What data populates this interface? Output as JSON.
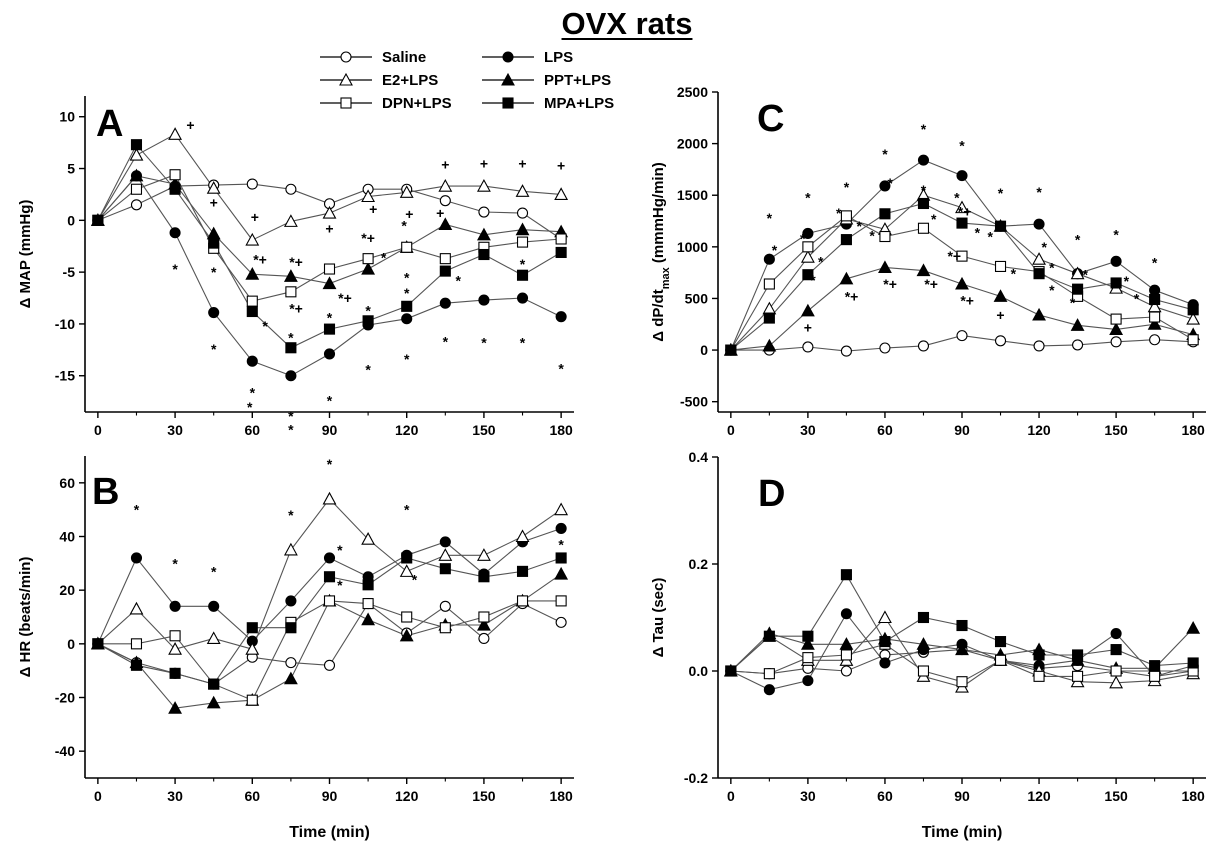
{
  "page_title": "OVX rats",
  "legend": [
    {
      "label": "Saline",
      "marker": "circle",
      "filled": false
    },
    {
      "label": "LPS",
      "marker": "circle",
      "filled": true
    },
    {
      "label": "E2+LPS",
      "marker": "triangle",
      "filled": false
    },
    {
      "label": "PPT+LPS",
      "marker": "triangle",
      "filled": true
    },
    {
      "label": "DPN+LPS",
      "marker": "square",
      "filled": false
    },
    {
      "label": "MPA+LPS",
      "marker": "square",
      "filled": true
    }
  ],
  "colors": {
    "marker_stroke": "#000000",
    "marker_fill": "#000000",
    "open_fill": "#ffffff",
    "axis": "#000000"
  },
  "chart_data": [
    {
      "panel": "A",
      "type": "line",
      "xlabel": "",
      "ylabel": "Δ MAP (mmHg)",
      "x": [
        0,
        15,
        30,
        45,
        60,
        75,
        90,
        105,
        120,
        135,
        150,
        165,
        180
      ],
      "xlim": [
        -5,
        185
      ],
      "ylim": [
        -18.5,
        12
      ],
      "xticks": [
        "0",
        "30",
        "60",
        "90",
        "120",
        "150",
        "180"
      ],
      "yticks": [
        "10",
        "5",
        "0",
        "-5",
        "-10",
        "-15"
      ],
      "ytick_values": [
        10,
        5,
        0,
        -5,
        -10,
        -15
      ],
      "series": [
        {
          "name": "Saline",
          "values": [
            0,
            1.5,
            3.3,
            3.4,
            3.5,
            3,
            1.6,
            3,
            3,
            1.9,
            0.8,
            0.7,
            -1.8
          ]
        },
        {
          "name": "LPS",
          "values": [
            0,
            4.3,
            -1.2,
            -8.9,
            -13.6,
            -15,
            -12.9,
            -10.1,
            -9.5,
            -8,
            -7.7,
            -7.5,
            -9.3
          ]
        },
        {
          "name": "E2+LPS",
          "values": [
            0,
            6.3,
            8.3,
            3.1,
            -1.9,
            -0.1,
            0.7,
            2.3,
            2.7,
            3.3,
            3.3,
            2.8,
            2.5
          ]
        },
        {
          "name": "PPT+LPS",
          "values": [
            0,
            4.3,
            3.5,
            -1.3,
            -5.2,
            -5.4,
            -6.1,
            -4.7,
            -2.6,
            -0.4,
            -1.4,
            -0.9,
            -1.1
          ]
        },
        {
          "name": "DPN+LPS",
          "values": [
            0,
            3,
            4.4,
            -2.7,
            -7.8,
            -6.9,
            -4.7,
            -3.7,
            -2.6,
            -3.7,
            -2.6,
            -2.1,
            -1.8
          ]
        },
        {
          "name": "MPA+LPS",
          "values": [
            0,
            7.3,
            3,
            -2.2,
            -8.8,
            -12.3,
            -10.5,
            -9.7,
            -8.3,
            -4.9,
            -3.3,
            -5.3,
            -3.1
          ]
        }
      ],
      "annotations": [
        {
          "text": "+",
          "x": 36,
          "y": 9.2
        },
        {
          "text": "*",
          "x": 30,
          "y": -4.7
        },
        {
          "text": "+",
          "x": 45,
          "y": 1.7
        },
        {
          "text": "*",
          "x": 45,
          "y": -5
        },
        {
          "text": "*",
          "x": 45,
          "y": -12.4
        },
        {
          "text": "+",
          "x": 61,
          "y": 0.3
        },
        {
          "text": "*+",
          "x": 63,
          "y": -3.8
        },
        {
          "text": "*",
          "x": 60,
          "y": -16.6
        },
        {
          "text": "*",
          "x": 59,
          "y": -18
        },
        {
          "text": "*",
          "x": 65,
          "y": -10.2
        },
        {
          "text": "*+",
          "x": 77,
          "y": -4
        },
        {
          "text": "*+",
          "x": 77,
          "y": -8.5
        },
        {
          "text": "*",
          "x": 75,
          "y": -11.3
        },
        {
          "text": "*",
          "x": 75,
          "y": -18.9
        },
        {
          "text": "*",
          "x": 75,
          "y": -20.2
        },
        {
          "text": "+",
          "x": 90,
          "y": -0.8
        },
        {
          "text": "*",
          "x": 90,
          "y": -9.4
        },
        {
          "text": "*",
          "x": 90,
          "y": -17.4
        },
        {
          "text": "*+",
          "x": 96,
          "y": -7.5
        },
        {
          "text": "+",
          "x": 107,
          "y": 1.1
        },
        {
          "text": "*+",
          "x": 105,
          "y": -1.7
        },
        {
          "text": "*",
          "x": 111,
          "y": -3.6
        },
        {
          "text": "*",
          "x": 105,
          "y": -8.7
        },
        {
          "text": "*",
          "x": 105,
          "y": -14.4
        },
        {
          "text": "+",
          "x": 121,
          "y": 0.6
        },
        {
          "text": "*",
          "x": 119,
          "y": -0.5
        },
        {
          "text": "*",
          "x": 120,
          "y": -5.5
        },
        {
          "text": "*",
          "x": 120,
          "y": -7
        },
        {
          "text": "*",
          "x": 120,
          "y": -13.4
        },
        {
          "text": "+",
          "x": 133,
          "y": 0.7
        },
        {
          "text": "+",
          "x": 135,
          "y": 5.4
        },
        {
          "text": "*",
          "x": 140,
          "y": -5.8
        },
        {
          "text": "*",
          "x": 135,
          "y": -11.7
        },
        {
          "text": "+",
          "x": 150,
          "y": 5.5
        },
        {
          "text": "*",
          "x": 150,
          "y": -11.8
        },
        {
          "text": "+",
          "x": 165,
          "y": 5.5
        },
        {
          "text": "*",
          "x": 165,
          "y": -4.2
        },
        {
          "text": "*",
          "x": 165,
          "y": -11.8
        },
        {
          "text": "+",
          "x": 180,
          "y": 5.3
        },
        {
          "text": "*",
          "x": 180,
          "y": -14.3
        }
      ]
    },
    {
      "panel": "B",
      "type": "line",
      "xlabel": "Time (min)",
      "ylabel": "Δ HR (beats/min)",
      "x": [
        0,
        15,
        30,
        45,
        60,
        75,
        90,
        105,
        120,
        135,
        150,
        165,
        180
      ],
      "xlim": [
        -5,
        185
      ],
      "ylim": [
        -50,
        70
      ],
      "xticks": [
        "0",
        "30",
        "60",
        "90",
        "120",
        "150",
        "180"
      ],
      "yticks": [
        "60",
        "40",
        "20",
        "0",
        "-20",
        "-40"
      ],
      "ytick_values": [
        60,
        40,
        20,
        0,
        -20,
        -40
      ],
      "series": [
        {
          "name": "Saline",
          "values": [
            0,
            -7,
            -11,
            -15,
            -5,
            -7,
            -8,
            15,
            4,
            14,
            2,
            15,
            8
          ]
        },
        {
          "name": "LPS",
          "values": [
            0,
            32,
            14,
            14,
            1,
            16,
            32,
            25,
            33,
            38,
            26,
            38,
            43
          ]
        },
        {
          "name": "E2+LPS",
          "values": [
            0,
            13,
            -2,
            2,
            -2,
            35,
            54,
            39,
            27,
            33,
            33,
            40,
            50
          ]
        },
        {
          "name": "PPT+LPS",
          "values": [
            0,
            -7,
            -24,
            -22,
            -21,
            -13,
            16,
            9,
            3,
            7,
            7,
            16,
            26
          ]
        },
        {
          "name": "DPN+LPS",
          "values": [
            0,
            0,
            3,
            -15,
            -21,
            8,
            16,
            15,
            10,
            6,
            10,
            16,
            16
          ]
        },
        {
          "name": "MPA+LPS",
          "values": [
            0,
            -8,
            -11,
            -15,
            6,
            6,
            25,
            22,
            32,
            28,
            25,
            27,
            32
          ]
        }
      ],
      "annotations": [
        {
          "text": "*",
          "x": 15,
          "y": 50
        },
        {
          "text": "*",
          "x": 30,
          "y": 30
        },
        {
          "text": "*",
          "x": 45,
          "y": 27
        },
        {
          "text": "*",
          "x": 75,
          "y": 48
        },
        {
          "text": "*",
          "x": 90,
          "y": 67
        },
        {
          "text": "*",
          "x": 94,
          "y": 35
        },
        {
          "text": "*",
          "x": 94,
          "y": 22
        },
        {
          "text": "*",
          "x": 120,
          "y": 50
        },
        {
          "text": "*",
          "x": 123,
          "y": 24
        },
        {
          "text": "*",
          "x": 180,
          "y": 37
        }
      ]
    },
    {
      "panel": "C",
      "type": "line",
      "xlabel": "",
      "ylabel": "Δ dP/dt_max (mmmHg/min)",
      "x": [
        0,
        15,
        30,
        45,
        60,
        75,
        90,
        105,
        120,
        135,
        150,
        165,
        180
      ],
      "xlim": [
        -5,
        185
      ],
      "ylim": [
        -600,
        2500
      ],
      "xticks": [
        "0",
        "30",
        "60",
        "90",
        "120",
        "150",
        "180"
      ],
      "yticks": [
        "2500",
        "2000",
        "1500",
        "1000",
        "500",
        "0",
        "-500"
      ],
      "ytick_values": [
        2500,
        2000,
        1500,
        1000,
        500,
        0,
        -500
      ],
      "series": [
        {
          "name": "Saline",
          "values": [
            0,
            0,
            30,
            -10,
            20,
            40,
            140,
            90,
            40,
            50,
            80,
            100,
            80
          ]
        },
        {
          "name": "LPS",
          "values": [
            0,
            880,
            1130,
            1220,
            1590,
            1840,
            1690,
            1200,
            1220,
            740,
            860,
            580,
            440
          ]
        },
        {
          "name": "E2+LPS",
          "values": [
            0,
            400,
            900,
            1270,
            1170,
            1500,
            1380,
            1200,
            880,
            740,
            600,
            420,
            300
          ]
        },
        {
          "name": "PPT+LPS",
          "values": [
            0,
            40,
            380,
            690,
            800,
            770,
            640,
            520,
            340,
            240,
            200,
            250,
            150
          ]
        },
        {
          "name": "DPN+LPS",
          "values": [
            0,
            640,
            1000,
            1300,
            1100,
            1180,
            910,
            810,
            760,
            520,
            300,
            320,
            100
          ]
        },
        {
          "name": "MPA+LPS",
          "values": [
            0,
            310,
            730,
            1070,
            1320,
            1420,
            1230,
            1200,
            740,
            590,
            650,
            490,
            390
          ]
        }
      ],
      "annotations": [
        {
          "text": "*",
          "x": 15,
          "y": 1280
        },
        {
          "text": "*",
          "x": 17,
          "y": 970
        },
        {
          "text": "*",
          "x": 30,
          "y": 1480
        },
        {
          "text": "*",
          "x": 28,
          "y": 1080
        },
        {
          "text": "*",
          "x": 35,
          "y": 860
        },
        {
          "text": "*",
          "x": 32,
          "y": 680
        },
        {
          "text": "+",
          "x": 30,
          "y": 220
        },
        {
          "text": "*",
          "x": 45,
          "y": 1580
        },
        {
          "text": "*",
          "x": 42,
          "y": 1330
        },
        {
          "text": "*",
          "x": 50,
          "y": 1200
        },
        {
          "text": "*+",
          "x": 47,
          "y": 520
        },
        {
          "text": "*",
          "x": 60,
          "y": 1900
        },
        {
          "text": "*",
          "x": 62,
          "y": 1620
        },
        {
          "text": "*",
          "x": 55,
          "y": 1110
        },
        {
          "text": "*+",
          "x": 62,
          "y": 640
        },
        {
          "text": "*",
          "x": 75,
          "y": 2140
        },
        {
          "text": "*",
          "x": 75,
          "y": 1550
        },
        {
          "text": "*",
          "x": 79,
          "y": 1270
        },
        {
          "text": "*+",
          "x": 78,
          "y": 640
        },
        {
          "text": "*",
          "x": 90,
          "y": 1980
        },
        {
          "text": "*",
          "x": 88,
          "y": 1480
        },
        {
          "text": "*+",
          "x": 91,
          "y": 1340
        },
        {
          "text": "*",
          "x": 96,
          "y": 1140
        },
        {
          "text": "*+",
          "x": 87,
          "y": 910
        },
        {
          "text": "*+",
          "x": 92,
          "y": 480
        },
        {
          "text": "*",
          "x": 105,
          "y": 1520
        },
        {
          "text": "*",
          "x": 101,
          "y": 1100
        },
        {
          "text": "*",
          "x": 110,
          "y": 740
        },
        {
          "text": "+",
          "x": 105,
          "y": 340
        },
        {
          "text": "*",
          "x": 120,
          "y": 1530
        },
        {
          "text": "*",
          "x": 122,
          "y": 1000
        },
        {
          "text": "*",
          "x": 125,
          "y": 800
        },
        {
          "text": "*",
          "x": 125,
          "y": 580
        },
        {
          "text": "*",
          "x": 135,
          "y": 1070
        },
        {
          "text": "*",
          "x": 138,
          "y": 730
        },
        {
          "text": "*",
          "x": 133,
          "y": 460
        },
        {
          "text": "*",
          "x": 150,
          "y": 1120
        },
        {
          "text": "*",
          "x": 154,
          "y": 670
        },
        {
          "text": "*",
          "x": 158,
          "y": 500
        },
        {
          "text": "*",
          "x": 165,
          "y": 850
        }
      ]
    },
    {
      "panel": "D",
      "type": "line",
      "xlabel": "Time (min)",
      "ylabel": "Δ Tau (sec)",
      "x": [
        0,
        15,
        30,
        45,
        60,
        75,
        90,
        105,
        120,
        135,
        150,
        165,
        180
      ],
      "xlim": [
        -5,
        185
      ],
      "ylim": [
        -0.2,
        0.4
      ],
      "xticks": [
        "0",
        "30",
        "60",
        "90",
        "120",
        "150",
        "180"
      ],
      "yticks": [
        "0.4",
        "0.2",
        "0.0",
        "-0.2"
      ],
      "ytick_values": [
        0.4,
        0.2,
        0,
        -0.2
      ],
      "series": [
        {
          "name": "Saline",
          "values": [
            0,
            -0.005,
            0.005,
            0.0,
            0.03,
            0.035,
            0.04,
            0.02,
            0.005,
            0.01,
            0.0,
            0.0,
            0.0
          ]
        },
        {
          "name": "LPS",
          "values": [
            0,
            -0.035,
            -0.018,
            0.107,
            0.015,
            0.04,
            0.05,
            0.02,
            0.01,
            0.02,
            0.07,
            -0.01,
            0.01
          ]
        },
        {
          "name": "E2+LPS",
          "values": [
            0,
            0.065,
            0.02,
            0.02,
            0.1,
            -0.01,
            -0.03,
            0.02,
            0.0,
            -0.02,
            -0.022,
            -0.018,
            -0.005
          ]
        },
        {
          "name": "PPT+LPS",
          "values": [
            0,
            0.07,
            0.05,
            0.05,
            0.06,
            0.05,
            0.04,
            0.03,
            0.04,
            0.02,
            0.005,
            0.005,
            0.08
          ]
        },
        {
          "name": "DPN+LPS",
          "values": [
            0,
            -0.005,
            0.025,
            0.03,
            0.05,
            0.0,
            -0.02,
            0.02,
            -0.01,
            -0.01,
            0.0,
            -0.01,
            0.0
          ]
        },
        {
          "name": "MPA+LPS",
          "values": [
            0,
            0.065,
            0.065,
            0.18,
            0.055,
            0.1,
            0.085,
            0.055,
            0.03,
            0.03,
            0.04,
            0.01,
            0.015
          ]
        }
      ],
      "annotations": []
    }
  ]
}
